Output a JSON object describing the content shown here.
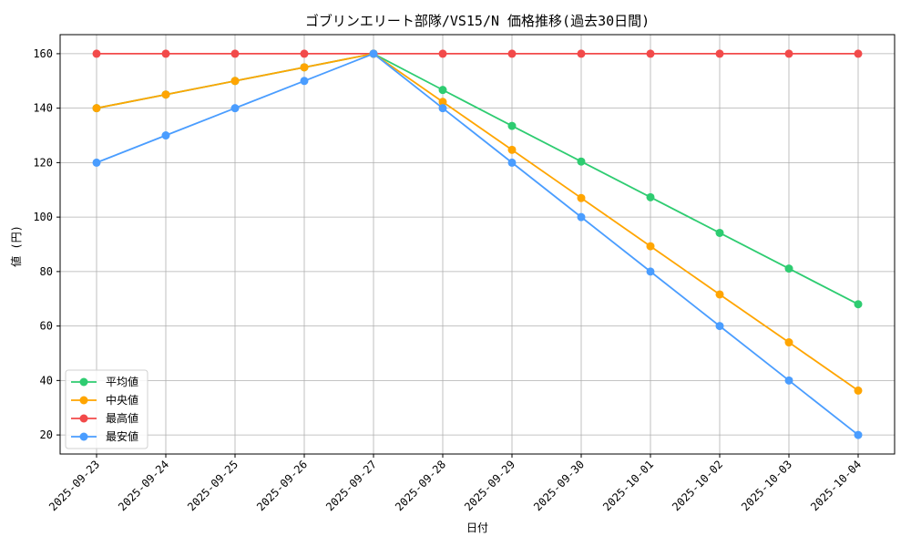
{
  "chart_data": {
    "type": "line",
    "title": "ゴブリンエリート部隊/VS15/N 価格推移(過去30日間)",
    "xlabel": "日付",
    "ylabel": "値 (円)",
    "categories": [
      "2025-09-23",
      "2025-09-24",
      "2025-09-25",
      "2025-09-26",
      "2025-09-27",
      "2025-09-28",
      "2025-09-29",
      "2025-09-30",
      "2025-10-01",
      "2025-10-02",
      "2025-10-03",
      "2025-10-04"
    ],
    "ylim": [
      13,
      167
    ],
    "yticks": [
      20,
      40,
      60,
      80,
      100,
      120,
      140,
      160
    ],
    "grid": true,
    "legend_position": "lower-left",
    "series": [
      {
        "name": "平均値",
        "color": "#2ecc71",
        "values": [
          140,
          145,
          150,
          155,
          160,
          146.7,
          133.5,
          120.4,
          107.3,
          94.2,
          81.1,
          68
        ]
      },
      {
        "name": "中央値",
        "color": "#ffa500",
        "values": [
          140,
          145,
          150,
          155,
          160,
          142.3,
          124.7,
          107,
          89.3,
          71.6,
          54,
          36.3
        ]
      },
      {
        "name": "最高値",
        "color": "#f24a4a",
        "values": [
          160,
          160,
          160,
          160,
          160,
          160,
          160,
          160,
          160,
          160,
          160,
          160
        ]
      },
      {
        "name": "最安値",
        "color": "#4a9dff",
        "values": [
          120,
          130,
          140,
          150,
          160,
          140,
          120,
          100,
          80,
          60,
          40,
          20
        ]
      }
    ],
    "draw_order": [
      2,
      0,
      1,
      3
    ]
  }
}
